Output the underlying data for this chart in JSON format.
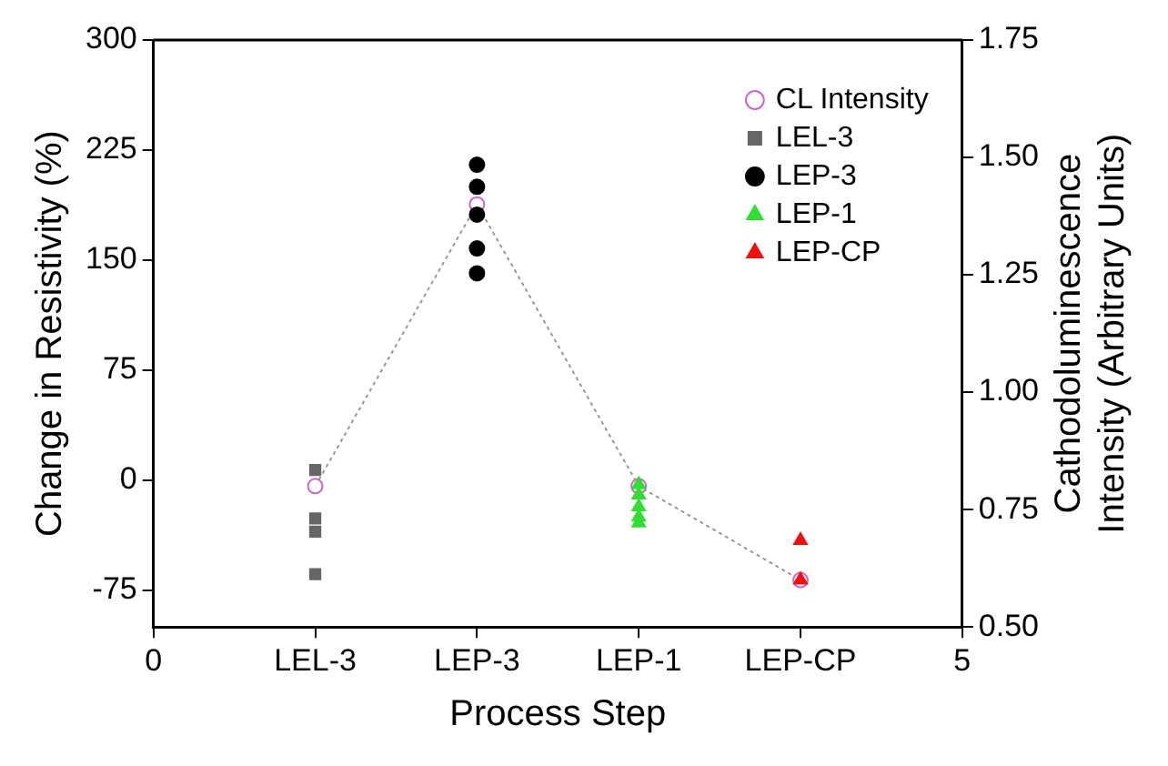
{
  "chart_data": {
    "type": "scatter",
    "xlabel": "Process Step",
    "ylabel": "Change in Resistivity (%)",
    "y2label": "Cathodoluminescence Intensity (Arbitrary Units)",
    "xlim": [
      0,
      5
    ],
    "xticks": [
      0,
      {
        "value": 1,
        "label": "LEL-3"
      },
      {
        "value": 2,
        "label": "LEP-3"
      },
      {
        "value": 3,
        "label": "LEP-1"
      },
      {
        "value": 4,
        "label": "LEP-CP"
      },
      5
    ],
    "ylim": [
      -100,
      300
    ],
    "yticks": [
      -75,
      0,
      75,
      150,
      225,
      300
    ],
    "y2lim": [
      0.5,
      1.75
    ],
    "y2ticks": [
      {
        "value": 0.5,
        "label": "0.50"
      },
      0.75,
      {
        "value": 1,
        "label": "1.00"
      },
      1.25,
      {
        "value": 1.5,
        "label": "1.50"
      },
      1.75
    ],
    "grid": false,
    "legend": "top right",
    "series": [
      {
        "name": "CL Intensity",
        "type": "line",
        "axis": "y2",
        "color": "#cc66cc",
        "marker": "circle",
        "line_style": "dotted",
        "x": [
          1,
          2,
          3,
          4
        ],
        "values": [
          0.8,
          1.4,
          0.8,
          0.6
        ]
      },
      {
        "name": "LEL-3",
        "type": "scatter",
        "color": "#666666",
        "marker": "square",
        "x": [
          1,
          1,
          1,
          1
        ],
        "values": [
          7,
          -26,
          -35,
          -64
        ]
      },
      {
        "name": "LEP-3",
        "type": "scatter",
        "color": "#000000",
        "marker": "circle",
        "x": [
          2,
          2,
          2,
          2,
          2
        ],
        "values": [
          215,
          200,
          181,
          158,
          141
        ]
      },
      {
        "name": "LEP-1",
        "type": "scatter",
        "color": "#33dd33",
        "marker": "triangle",
        "x": [
          3,
          3,
          3,
          3,
          3
        ],
        "values": [
          -3,
          -10,
          -18,
          -25,
          -29
        ]
      },
      {
        "name": "LEP-CP",
        "type": "scatter",
        "color": "#ee1111",
        "marker": "triangle",
        "x": [
          4,
          4
        ],
        "values": [
          -41,
          -68
        ]
      }
    ]
  }
}
